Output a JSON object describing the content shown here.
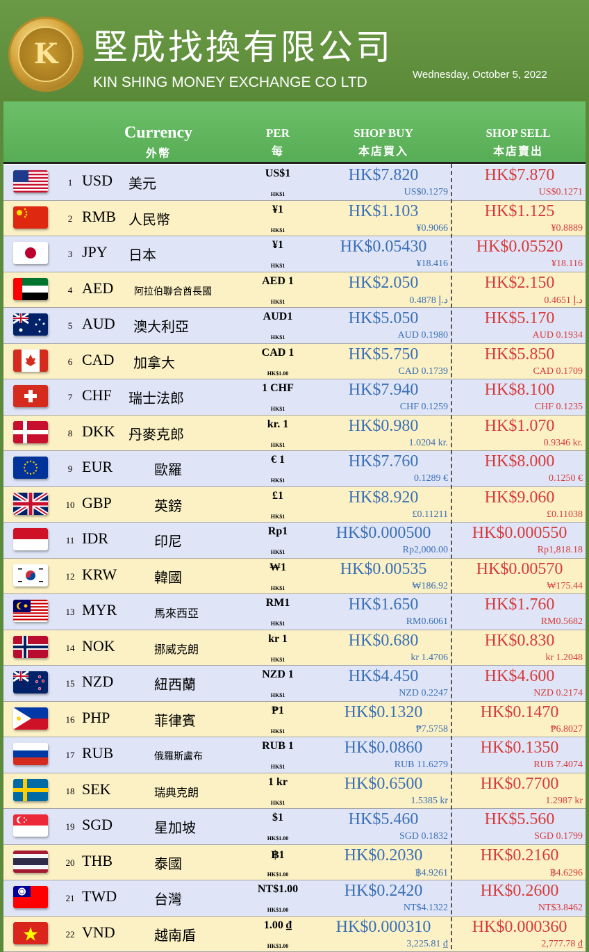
{
  "header": {
    "title_zh": "堅成找換有限公司",
    "title_en": "KIN SHING MONEY EXCHANGE CO LTD",
    "date": "Wednesday, October 5, 2022",
    "logo_text": "KIN SHING MONEY EXCHANGE CO LTD",
    "logo_mark": "K"
  },
  "columns": {
    "currency_en": "Currency",
    "currency_zh": "外幣",
    "per_en": "PER",
    "per_zh": "每",
    "buy_en": "SHOP BUY",
    "buy_zh": "本店買入",
    "sell_en": "SHOP SELL",
    "sell_zh": "本店賣出"
  },
  "rates": [
    {
      "num": "1",
      "code": "USD",
      "name": "美元",
      "per": "US$1",
      "per_hk": "HK$1",
      "buy": "HK$7.820",
      "buy_inv": "US$0.1279",
      "sell": "HK$7.870",
      "sell_inv": "US$0.1271",
      "flag": "us-flag"
    },
    {
      "num": "2",
      "code": "RMB",
      "name": "人民幣",
      "per": "¥1",
      "per_hk": "HK$1",
      "buy": "HK$1.103",
      "buy_inv": "¥0.9066",
      "sell": "HK$1.125",
      "sell_inv": "¥0.8889",
      "flag": "cn-flag"
    },
    {
      "num": "3",
      "code": "JPY",
      "name": "日本",
      "per": "¥1",
      "per_hk": "HK$1",
      "buy": "HK$0.05430",
      "buy_inv": "¥18.416",
      "sell": "HK$0.05520",
      "sell_inv": "¥18.116",
      "flag": "jp-flag"
    },
    {
      "num": "4",
      "code": "AED",
      "name": "阿拉伯聯合酋長國",
      "per": "AED 1",
      "per_hk": "HK$1",
      "buy": "HK$2.050",
      "buy_inv": "0.4878 د.إ",
      "sell": "HK$2.150",
      "sell_inv": "0.4651 د.إ",
      "flag": "ae-flag"
    },
    {
      "num": "5",
      "code": "AUD",
      "name": "澳大利亞",
      "per": "AUD1",
      "per_hk": "HK$1",
      "buy": "HK$5.050",
      "buy_inv": "AUD 0.1980",
      "sell": "HK$5.170",
      "sell_inv": "AUD 0.1934",
      "flag": "au-flag"
    },
    {
      "num": "6",
      "code": "CAD",
      "name": "加拿大",
      "per": "CAD 1",
      "per_hk": "HK$1.00",
      "buy": "HK$5.750",
      "buy_inv": "CAD 0.1739",
      "sell": "HK$5.850",
      "sell_inv": "CAD 0.1709",
      "flag": "ca-flag"
    },
    {
      "num": "7",
      "code": "CHF",
      "name": "瑞士法郎",
      "per": "1 CHF",
      "per_hk": "HK$1",
      "buy": "HK$7.940",
      "buy_inv": "CHF 0.1259",
      "sell": "HK$8.100",
      "sell_inv": "CHF 0.1235",
      "flag": "ch-flag"
    },
    {
      "num": "8",
      "code": "DKK",
      "name": "丹麥克郎",
      "per": "kr. 1",
      "per_hk": "HK$1",
      "buy": "HK$0.980",
      "buy_inv": "1.0204 kr.",
      "sell": "HK$1.070",
      "sell_inv": "0.9346 kr.",
      "flag": "dk-flag"
    },
    {
      "num": "9",
      "code": "EUR",
      "name": "歐羅",
      "per": "€ 1",
      "per_hk": "HK$1",
      "buy": "HK$7.760",
      "buy_inv": "0.1289 €",
      "sell": "HK$8.000",
      "sell_inv": "0.1250 €",
      "flag": "eu-flag"
    },
    {
      "num": "10",
      "code": "GBP",
      "name": "英鎊",
      "per": "£1",
      "per_hk": "HK$1",
      "buy": "HK$8.920",
      "buy_inv": "£0.11211",
      "sell": "HK$9.060",
      "sell_inv": "£0.11038",
      "flag": "gb-flag"
    },
    {
      "num": "11",
      "code": "IDR",
      "name": "印尼",
      "per": "Rp1",
      "per_hk": "HK$1",
      "buy": "HK$0.000500",
      "buy_inv": "Rp2,000.00",
      "sell": "HK$0.000550",
      "sell_inv": "Rp1,818.18",
      "flag": "id-flag"
    },
    {
      "num": "12",
      "code": "KRW",
      "name": "韓國",
      "per": "₩1",
      "per_hk": "HK$1",
      "buy": "HK$0.00535",
      "buy_inv": "₩186.92",
      "sell": "HK$0.00570",
      "sell_inv": "₩175.44",
      "flag": "kr-flag"
    },
    {
      "num": "13",
      "code": "MYR",
      "name": "馬來西亞",
      "per": "RM1",
      "per_hk": "HK$1",
      "buy": "HK$1.650",
      "buy_inv": "RM0.6061",
      "sell": "HK$1.760",
      "sell_inv": "RM0.5682",
      "flag": "my-flag"
    },
    {
      "num": "14",
      "code": "NOK",
      "name": "挪威克朗",
      "per": "kr 1",
      "per_hk": "HK$1",
      "buy": "HK$0.680",
      "buy_inv": "kr 1.4706",
      "sell": "HK$0.830",
      "sell_inv": "kr 1.2048",
      "flag": "no-flag"
    },
    {
      "num": "15",
      "code": "NZD",
      "name": "紐西蘭",
      "per": "NZD 1",
      "per_hk": "HK$1",
      "buy": "HK$4.450",
      "buy_inv": "NZD 0.2247",
      "sell": "HK$4.600",
      "sell_inv": "NZD 0.2174",
      "flag": "nz-flag"
    },
    {
      "num": "16",
      "code": "PHP",
      "name": "菲律賓",
      "per": "₱1",
      "per_hk": "HK$1",
      "buy": "HK$0.1320",
      "buy_inv": "₱7.5758",
      "sell": "HK$0.1470",
      "sell_inv": "₱6.8027",
      "flag": "ph-flag"
    },
    {
      "num": "17",
      "code": "RUB",
      "name": "俄羅斯盧布",
      "per": "RUB 1",
      "per_hk": "HK$1",
      "buy": "HK$0.0860",
      "buy_inv": "RUB 11.6279",
      "sell": "HK$0.1350",
      "sell_inv": "RUB 7.4074",
      "flag": "ru-flag"
    },
    {
      "num": "18",
      "code": "SEK",
      "name": "瑞典克朗",
      "per": "1 kr",
      "per_hk": "HK$1",
      "buy": "HK$0.6500",
      "buy_inv": "1.5385 kr",
      "sell": "HK$0.7700",
      "sell_inv": "1.2987 kr",
      "flag": "se-flag"
    },
    {
      "num": "19",
      "code": "SGD",
      "name": "星加坡",
      "per": "$1",
      "per_hk": "HK$1.00",
      "buy": "HK$5.460",
      "buy_inv": "SGD 0.1832",
      "sell": "HK$5.560",
      "sell_inv": "SGD 0.1799",
      "flag": "sg-flag"
    },
    {
      "num": "20",
      "code": "THB",
      "name": "泰國",
      "per": "฿1",
      "per_hk": "HK$1.00",
      "buy": "HK$0.2030",
      "buy_inv": "฿4.9261",
      "sell": "HK$0.2160",
      "sell_inv": "฿4.6296",
      "flag": "th-flag"
    },
    {
      "num": "21",
      "code": "TWD",
      "name": "台灣",
      "per": "NT$1.00",
      "per_hk": "HK$1.00",
      "buy": "HK$0.2420",
      "buy_inv": "NT$4.1322",
      "sell": "HK$0.2600",
      "sell_inv": "NT$3.8462",
      "flag": "tw-flag"
    },
    {
      "num": "22",
      "code": "VND",
      "name": "越南盾",
      "per": "1.00 ₫",
      "per_hk": "HK$1.00",
      "buy": "HK$0.000310",
      "buy_inv": "3,225.81 ₫",
      "sell": "HK$0.000360",
      "sell_inv": "2,777.78 ₫",
      "flag": "vn-flag"
    }
  ]
}
